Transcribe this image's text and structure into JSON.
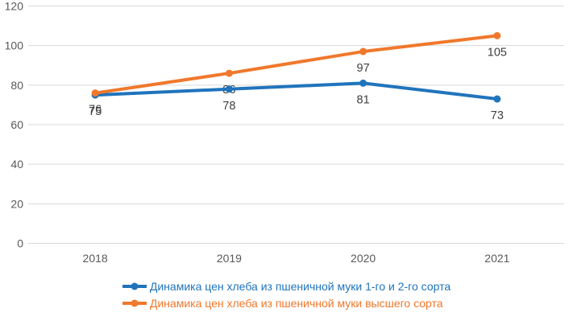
{
  "chart_data": {
    "type": "line",
    "categories": [
      "2018",
      "2019",
      "2020",
      "2021"
    ],
    "series": [
      {
        "name": "Динамика цен хлеба из пшеничной муки 1-го и 2-го сорта",
        "values": [
          75,
          78,
          81,
          73
        ],
        "color": "#2074BC",
        "labels_behind": false
      },
      {
        "name": "Динамика цен хлеба из пшеничной муки высшего сорта",
        "values": [
          76,
          86,
          97,
          105
        ],
        "color": "#F0782C",
        "labels_behind": true
      }
    ],
    "title": "",
    "xlabel": "",
    "ylabel": "",
    "ylim": [
      0,
      120
    ],
    "yticks": [
      0,
      20,
      40,
      60,
      80,
      100,
      120
    ],
    "grid": true,
    "data_labels": true,
    "legend_position": "bottom",
    "marker": "circle",
    "colors": {
      "gridline": "#D9D9D9",
      "axis_text": "#595959",
      "data_label_text": "#404040",
      "background": "#FFFFFF"
    }
  }
}
